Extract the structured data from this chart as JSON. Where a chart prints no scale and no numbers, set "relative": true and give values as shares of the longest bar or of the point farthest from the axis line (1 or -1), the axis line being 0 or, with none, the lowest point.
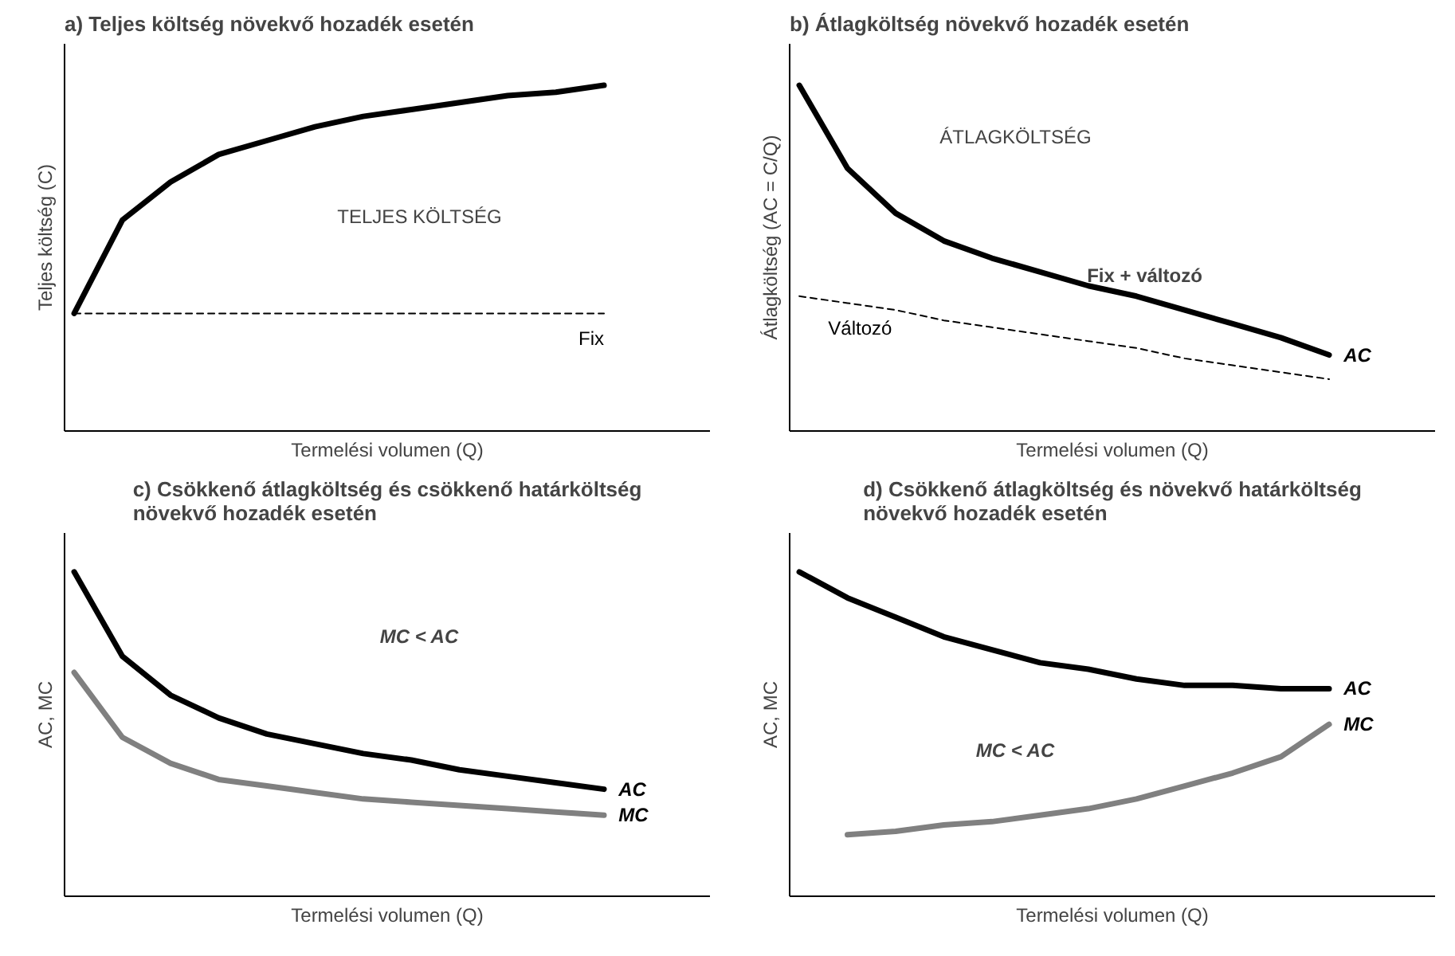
{
  "chart_data": [
    {
      "type": "line",
      "title": "a) Teljes költség növekvő hozadék esetén",
      "xlabel": "Termelési volumen (Q)",
      "ylabel": "Teljes költség (C)",
      "relative": true,
      "categories": [
        null,
        null,
        null,
        null,
        null,
        null,
        null,
        null,
        null,
        null,
        null,
        null
      ],
      "annotations": [
        "TELJES KÖLTSÉG"
      ],
      "series": [
        {
          "color": "#000000",
          "values": [
            0.34,
            0.61,
            0.72,
            0.8,
            0.84,
            0.88,
            0.91,
            0.93,
            0.95,
            0.97,
            0.98,
            1.0
          ]
        },
        {
          "name": "Fix",
          "color": "#000000",
          "line_style": "dashed",
          "values": [
            0.34,
            0.34,
            0.34,
            0.34,
            0.34,
            0.34,
            0.34,
            0.34,
            0.34,
            0.34,
            0.34,
            0.34
          ]
        }
      ]
    },
    {
      "type": "line",
      "title": "b) Átlagköltség növekvő hozadék esetén",
      "xlabel": "Termelési volumen (Q)",
      "ylabel": "Átlagköltség (AC = C/Q)",
      "relative": true,
      "categories": [
        null,
        null,
        null,
        null,
        null,
        null,
        null,
        null,
        null,
        null,
        null,
        null
      ],
      "annotations": [
        "ÁTLAGKÖLTSÉG",
        "Fix + változó"
      ],
      "series": [
        {
          "name": "AC",
          "color": "#000000",
          "values": [
            1.0,
            0.76,
            0.63,
            0.55,
            0.5,
            0.46,
            0.42,
            0.39,
            0.35,
            0.31,
            0.27,
            0.22
          ]
        },
        {
          "name": "Változó",
          "color": "#000000",
          "line_style": "dashed",
          "values": [
            0.39,
            0.37,
            0.35,
            0.32,
            0.3,
            0.28,
            0.26,
            0.24,
            0.21,
            0.19,
            0.17,
            0.15
          ]
        }
      ]
    },
    {
      "type": "line",
      "title": "c) Csökkenő átlagköltség és csökkenő határköltség\nnövekvő hozadék esetén",
      "xlabel": "Termelési volumen (Q)",
      "ylabel": "AC, MC",
      "relative": true,
      "categories": [
        null,
        null,
        null,
        null,
        null,
        null,
        null,
        null,
        null,
        null,
        null,
        null
      ],
      "annotations": [
        "MC < AC"
      ],
      "series": [
        {
          "name": "AC",
          "color": "#000000",
          "values": [
            1.0,
            0.74,
            0.62,
            0.55,
            0.5,
            0.47,
            0.44,
            0.42,
            0.39,
            0.37,
            0.35,
            0.33
          ]
        },
        {
          "name": "MC",
          "color": "#808080",
          "values": [
            0.69,
            0.49,
            0.41,
            0.36,
            0.34,
            0.32,
            0.3,
            0.29,
            0.28,
            0.27,
            0.26,
            0.25
          ]
        }
      ]
    },
    {
      "type": "line",
      "title": "d) Csökkenő átlagköltség és növekvő határköltség\nnövekvő hozadék esetén",
      "xlabel": "Termelési volumen (Q)",
      "ylabel": "AC, MC",
      "relative": true,
      "categories": [
        null,
        null,
        null,
        null,
        null,
        null,
        null,
        null,
        null,
        null,
        null,
        null
      ],
      "annotations": [
        "MC < AC"
      ],
      "series": [
        {
          "name": "AC",
          "color": "#000000",
          "values": [
            1.0,
            0.92,
            0.86,
            0.8,
            0.76,
            0.72,
            0.7,
            0.67,
            0.65,
            0.65,
            0.64,
            0.64
          ]
        },
        {
          "name": "MC",
          "color": "#808080",
          "values": [
            null,
            0.19,
            0.2,
            0.22,
            0.23,
            0.25,
            0.27,
            0.3,
            0.34,
            0.38,
            0.43,
            0.53
          ]
        }
      ]
    }
  ]
}
